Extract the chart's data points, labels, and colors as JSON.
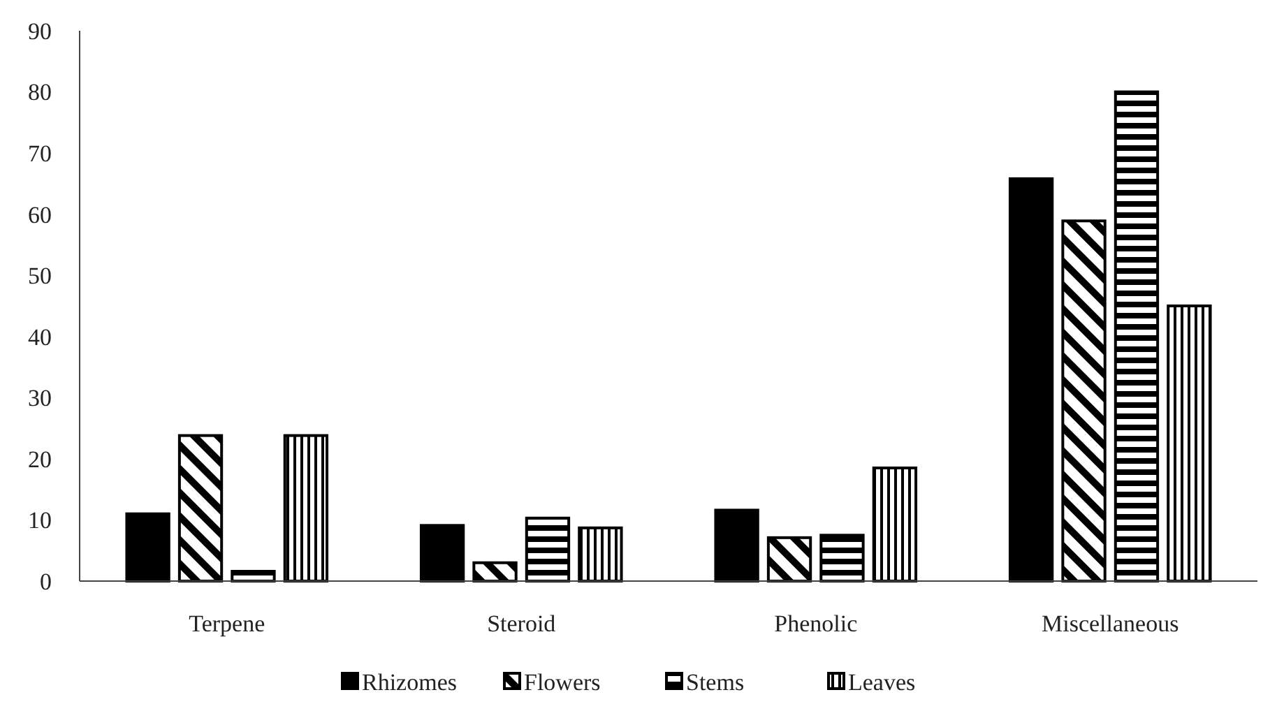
{
  "chart_data": {
    "type": "bar",
    "categories": [
      "Terpene",
      "Steroid",
      "Phenolic",
      "Miscellaneous"
    ],
    "series": [
      {
        "name": "Rhizomes",
        "color": "#000000",
        "values": [
          11,
          9.1,
          11.6,
          65.8
        ]
      },
      {
        "name": "Flowers",
        "color": "#000000",
        "values": [
          23.8,
          3,
          7.1,
          58.9
        ]
      },
      {
        "name": "Stems",
        "color": "#000000",
        "values": [
          1.6,
          10.3,
          7.5,
          80
        ]
      },
      {
        "name": "Leaves",
        "color": "#000000",
        "values": [
          23.8,
          8.7,
          18.5,
          45
        ]
      }
    ],
    "ylim": [
      0,
      90
    ],
    "yticks": [
      0,
      10,
      20,
      30,
      40,
      50,
      60,
      70,
      80,
      90
    ],
    "grid": false,
    "legend": "bottom"
  }
}
